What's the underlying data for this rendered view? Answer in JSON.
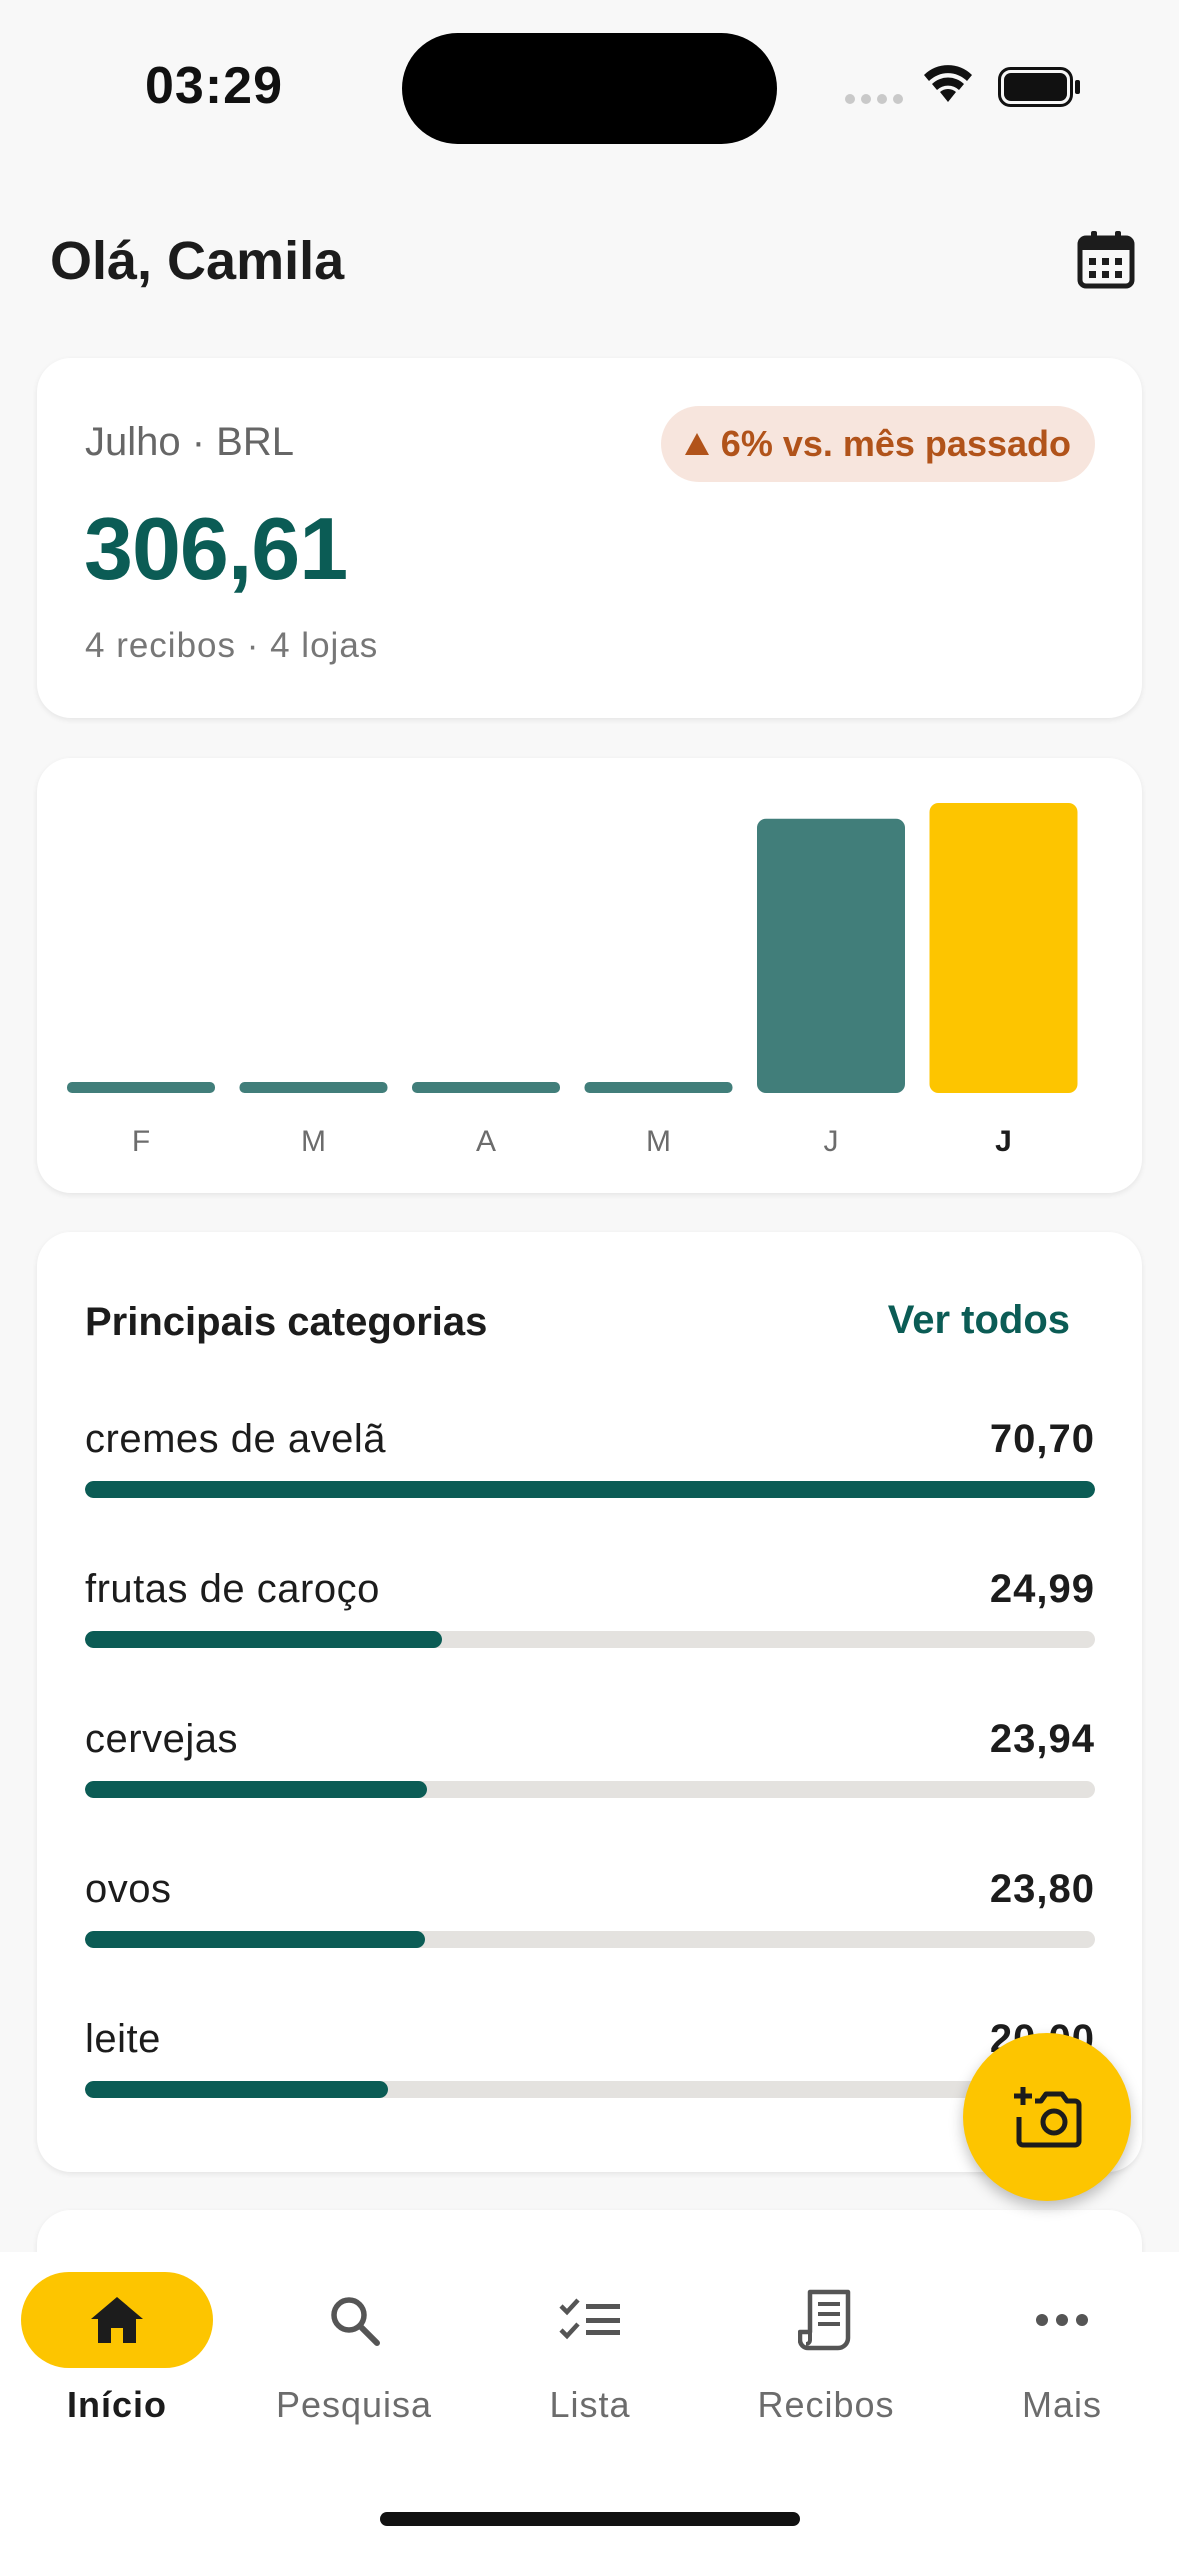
{
  "status_bar": {
    "time": "03:29"
  },
  "header": {
    "greeting": "Olá, Camila",
    "calendar_icon": "calendar-icon"
  },
  "summary": {
    "period": "Julho · BRL",
    "total": "306,61",
    "counts": "4 recibos · 4 lojas",
    "trend": {
      "direction": "up",
      "text": "6% vs. mês passado",
      "color": "#b1531a"
    }
  },
  "chart_data": {
    "type": "bar",
    "categories": [
      "F",
      "M",
      "A",
      "M",
      "J",
      "J"
    ],
    "values": [
      0,
      0,
      0,
      0,
      290,
      306.61
    ],
    "highlight_index": 5,
    "colors": {
      "normal": "#417e7a",
      "current": "#fdc500"
    },
    "grid": false
  },
  "categories_section": {
    "title": "Principais categorias",
    "see_all": "Ver todos",
    "items": [
      {
        "name": "cremes de avelã",
        "value": "70,70",
        "fraction": 1.0
      },
      {
        "name": "frutas de caroço",
        "value": "24,99",
        "fraction": 0.353
      },
      {
        "name": "cervejas",
        "value": "23,94",
        "fraction": 0.339
      },
      {
        "name": "ovos",
        "value": "23,80",
        "fraction": 0.337
      },
      {
        "name": "leite",
        "value": "20,00",
        "fraction": 0.3
      }
    ]
  },
  "fab": {
    "icon": "add-photo-icon"
  },
  "nav": {
    "items": [
      {
        "label": "Início",
        "icon": "home-icon",
        "active": true
      },
      {
        "label": "Pesquisa",
        "icon": "search-icon"
      },
      {
        "label": "Lista",
        "icon": "checklist-icon"
      },
      {
        "label": "Recibos",
        "icon": "receipt-icon"
      },
      {
        "label": "Mais",
        "icon": "more-icon"
      }
    ]
  },
  "colors": {
    "brand": "#0b5c55",
    "accent": "#fdc500",
    "trend_bg": "#f7e5dd"
  }
}
